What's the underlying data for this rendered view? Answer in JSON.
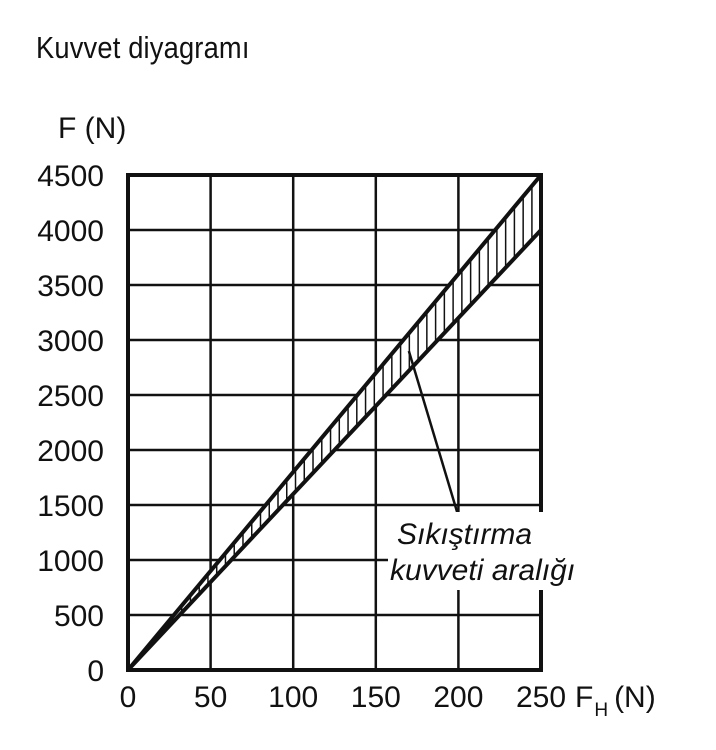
{
  "chart_data": {
    "type": "area",
    "title": "Kuvvet diyagramı",
    "ylabel": "F (N)",
    "xlabel": {
      "main": "F",
      "sub": "H",
      "unit": "(N)"
    },
    "xlim": [
      0,
      250
    ],
    "ylim": [
      0,
      4500
    ],
    "x_ticks": [
      0,
      50,
      100,
      150,
      200,
      250
    ],
    "y_ticks": [
      0,
      500,
      1000,
      1500,
      2000,
      2500,
      3000,
      3500,
      4000,
      4500
    ],
    "x_tick_labels": [
      "0",
      "50",
      "100",
      "150",
      "200",
      "250"
    ],
    "y_tick_labels": [
      "0",
      "500",
      "1000",
      "1500",
      "2000",
      "2500",
      "3000",
      "3500",
      "4000",
      "4500"
    ],
    "grid": true,
    "series": [
      {
        "x": [
          0,
          250
        ],
        "y": [
          0,
          4500
        ]
      },
      {
        "x": [
          0,
          250
        ],
        "y": [
          0,
          4000
        ]
      }
    ],
    "band_fill": "hatched",
    "annotation": {
      "lines": [
        "Sıkıştırma",
        "kuvveti aralığı"
      ],
      "points_to": {
        "x": 170,
        "y": 2900
      }
    },
    "colors": {
      "line": "#111111",
      "background": "#ffffff"
    }
  }
}
